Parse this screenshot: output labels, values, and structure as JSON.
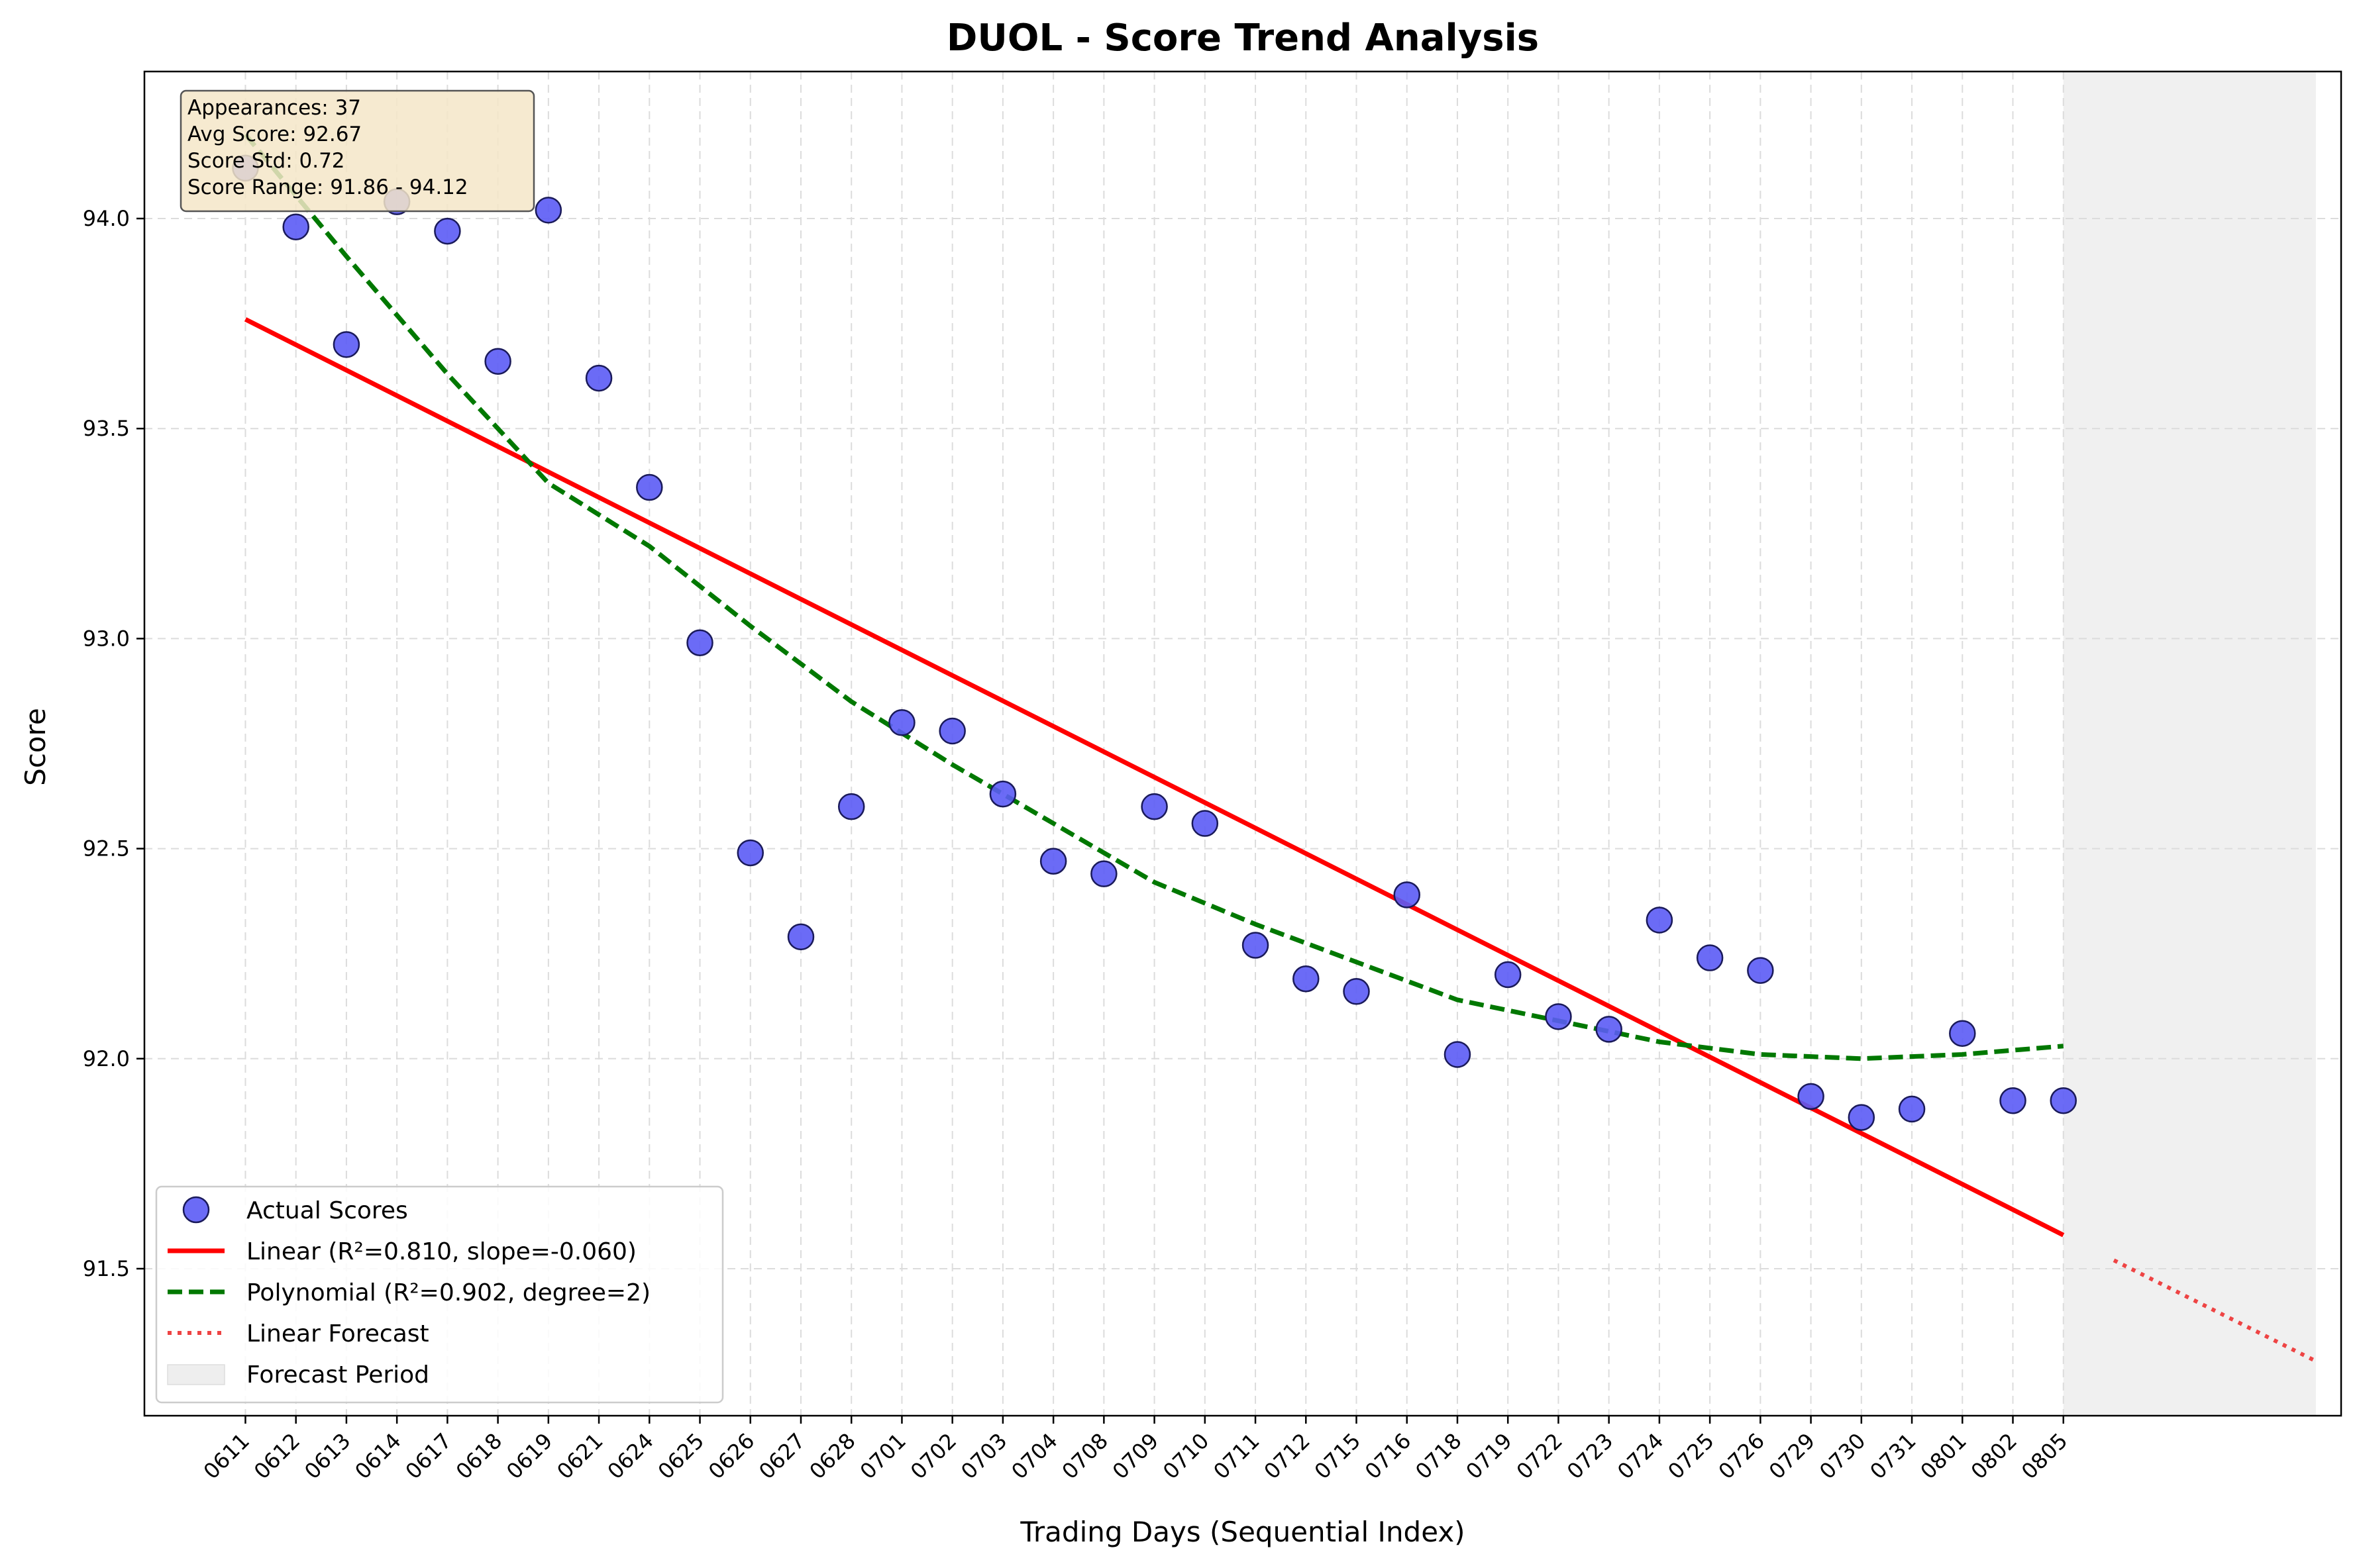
{
  "chart_data": {
    "type": "scatter",
    "title": "DUOL - Score Trend Analysis",
    "xlabel": "Trading Days (Sequential Index)",
    "ylabel": "Score",
    "xlim": [
      -2,
      41.5
    ],
    "ylim": [
      91.15,
      94.35
    ],
    "yticks": [
      91.5,
      92.0,
      92.5,
      93.0,
      93.5,
      94.0
    ],
    "ytick_labels": [
      "91.5",
      "92.0",
      "92.5",
      "93.0",
      "93.5",
      "94.0"
    ],
    "grid": true,
    "x_categories": [
      "0611",
      "0612",
      "0613",
      "0614",
      "0617",
      "0618",
      "0619",
      "0621",
      "0624",
      "0625",
      "0626",
      "0627",
      "0628",
      "0701",
      "0702",
      "0703",
      "0704",
      "0708",
      "0709",
      "0710",
      "0711",
      "0712",
      "0715",
      "0716",
      "0718",
      "0719",
      "0722",
      "0723",
      "0724",
      "0725",
      "0726",
      "0729",
      "0730",
      "0731",
      "0801",
      "0802",
      "0805"
    ],
    "series": [
      {
        "name": "Actual Scores",
        "kind": "scatter",
        "color": "#5b5bf5",
        "x": [
          0,
          1,
          2,
          3,
          4,
          5,
          6,
          7,
          8,
          9,
          10,
          11,
          12,
          13,
          14,
          15,
          16,
          17,
          18,
          19,
          20,
          21,
          22,
          23,
          24,
          25,
          26,
          27,
          28,
          29,
          30,
          31,
          32,
          33,
          34,
          35,
          36
        ],
        "y": [
          94.12,
          93.98,
          93.7,
          94.04,
          93.97,
          93.66,
          94.02,
          93.62,
          93.36,
          92.99,
          92.49,
          92.29,
          92.6,
          92.8,
          92.78,
          92.63,
          92.47,
          92.44,
          92.6,
          92.56,
          92.27,
          92.19,
          92.16,
          92.39,
          92.01,
          92.2,
          92.1,
          92.07,
          92.33,
          92.24,
          92.21,
          91.91,
          91.86,
          91.88,
          92.06,
          91.9,
          91.9
        ]
      },
      {
        "name": "Linear (R²=0.810, slope=-0.060)",
        "kind": "line",
        "color": "#ff0000",
        "x": [
          0,
          36
        ],
        "y": [
          93.76,
          91.58
        ]
      },
      {
        "name": "Polynomial (R²=0.902, degree=2)",
        "kind": "dashed",
        "color": "#007800",
        "x": [
          0,
          2,
          4,
          6,
          8,
          10,
          12,
          14,
          16,
          18,
          20,
          22,
          24,
          26,
          28,
          30,
          32,
          34,
          36
        ],
        "y": [
          94.2,
          93.91,
          93.63,
          93.37,
          93.22,
          93.03,
          92.85,
          92.7,
          92.56,
          92.42,
          92.32,
          92.23,
          92.14,
          92.09,
          92.04,
          92.01,
          92.0,
          92.01,
          92.03
        ]
      },
      {
        "name": "Linear Forecast",
        "kind": "dotted",
        "color": "#ee4444",
        "x": [
          37,
          41
        ],
        "y": [
          91.52,
          91.28
        ]
      }
    ],
    "forecast_period": {
      "name": "Forecast Period",
      "x_start": 36,
      "x_end": 41,
      "color": "#f0f0f0"
    },
    "stats_box": [
      "Appearances: 37",
      "Avg Score: 92.67",
      "Score Std: 0.72",
      "Score Range: 91.86 - 94.12"
    ],
    "legend_placement": "lower-left"
  }
}
